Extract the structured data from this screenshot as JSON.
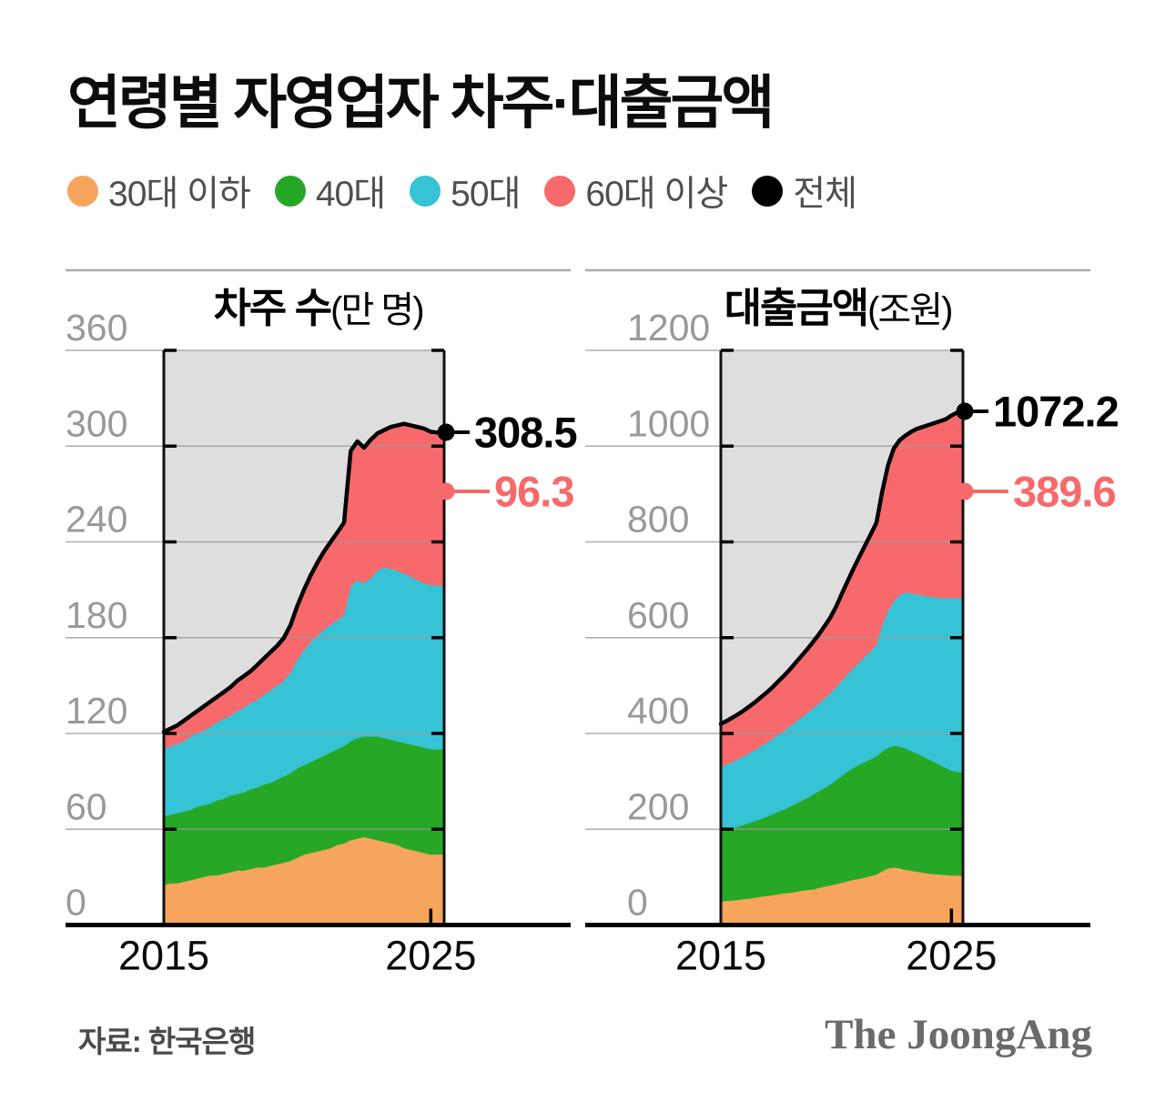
{
  "title": "연령별 자영업자 차주·대출금액",
  "source": "자료: 한국은행",
  "brand": "The JoongAng",
  "colors": {
    "under30": "#F7A55C",
    "age40": "#26A826",
    "age50": "#35C3D5",
    "age60plus": "#F8696B",
    "total": "#000000",
    "plot_bg": "#DEDEDE",
    "grid": "#9A9A9A",
    "axis_label": "#999999",
    "x_label": "#0a0a0a"
  },
  "legend": {
    "items": [
      {
        "label": "30대 이하",
        "color_key": "under30"
      },
      {
        "label": "40대",
        "color_key": "age40"
      },
      {
        "label": "50대",
        "color_key": "age50"
      },
      {
        "label": "60대 이상",
        "color_key": "age60plus"
      },
      {
        "label": "전체",
        "color_key": "total"
      }
    ]
  },
  "chart_data": [
    {
      "type": "area",
      "title": "차주 수",
      "unit": "(만 명)",
      "ylim": [
        0,
        360
      ],
      "yticks": [
        0,
        60,
        120,
        180,
        240,
        300,
        360
      ],
      "xlim": [
        2015,
        2025.5
      ],
      "xticks": [
        2015,
        2025
      ],
      "grid": true,
      "legend_position": "top",
      "x": [
        2015,
        2015.25,
        2015.5,
        2015.75,
        2016,
        2016.25,
        2016.5,
        2016.75,
        2017,
        2017.25,
        2017.5,
        2017.75,
        2018,
        2018.25,
        2018.5,
        2018.75,
        2019,
        2019.25,
        2019.5,
        2019.75,
        2020,
        2020.25,
        2020.5,
        2020.75,
        2021,
        2021.25,
        2021.5,
        2021.75,
        2022,
        2022.25,
        2022.5,
        2022.75,
        2023,
        2023.25,
        2023.5,
        2023.75,
        2024,
        2024.25,
        2024.5,
        2024.75,
        2025,
        2025.25,
        2025.5
      ],
      "series": [
        {
          "key": "under30",
          "name": "30대 이하",
          "values": [
            25,
            26,
            26,
            27,
            28,
            29,
            30,
            31,
            31,
            32,
            33,
            34,
            34,
            35,
            36,
            36,
            37,
            38,
            39,
            40,
            42,
            44,
            45,
            46,
            47,
            48,
            50,
            51,
            53,
            54,
            55,
            54,
            53,
            52,
            51,
            50,
            48,
            47,
            46,
            45,
            44,
            44,
            44
          ]
        },
        {
          "key": "age40",
          "name": "40대",
          "values": [
            43,
            43,
            44,
            44,
            44,
            45,
            45,
            45,
            47,
            47,
            48,
            48,
            49,
            50,
            50,
            52,
            52,
            53,
            54,
            55,
            56,
            56,
            57,
            58,
            59,
            60,
            60,
            61,
            62,
            63,
            63,
            64,
            65,
            65,
            65,
            65,
            66,
            66,
            66,
            66,
            66,
            66,
            66
          ]
        },
        {
          "key": "age50",
          "name": "50대",
          "values": [
            42,
            43,
            43,
            44,
            46,
            46,
            47,
            48,
            49,
            50,
            50,
            52,
            53,
            54,
            55,
            56,
            58,
            59,
            60,
            63,
            68,
            72,
            75,
            77,
            79,
            80,
            81,
            82,
            97,
            99,
            96,
            99,
            104,
            107,
            107,
            107,
            106,
            105,
            104,
            103,
            103,
            102.5,
            102.2
          ]
        },
        {
          "key": "age60plus",
          "name": "60대 이상",
          "values": [
            11,
            11,
            12,
            13,
            13,
            14,
            15,
            16,
            16,
            17,
            18,
            19,
            20,
            20,
            22,
            23,
            24,
            25,
            27,
            30,
            34,
            38,
            42,
            46,
            49,
            52,
            55,
            58,
            85,
            87,
            85,
            87,
            86,
            86,
            89,
            91,
            94,
            95,
            96,
            97,
            96,
            96,
            96.3
          ]
        }
      ],
      "total_series_name": "전체",
      "callouts": [
        {
          "label": "308.5",
          "color_key": "total",
          "y": 185
        },
        {
          "label": "96.3",
          "color_key": "age60plus",
          "y": 250
        }
      ]
    },
    {
      "type": "area",
      "title": "대출금액",
      "unit": "(조원)",
      "ylim": [
        0,
        1200
      ],
      "yticks": [
        0,
        200,
        400,
        600,
        800,
        1000,
        1200
      ],
      "xlim": [
        2015,
        2025.5
      ],
      "xticks": [
        2015,
        2025
      ],
      "grid": true,
      "legend_position": "top",
      "x": [
        2015,
        2015.25,
        2015.5,
        2015.75,
        2016,
        2016.25,
        2016.5,
        2016.75,
        2017,
        2017.25,
        2017.5,
        2017.75,
        2018,
        2018.25,
        2018.5,
        2018.75,
        2019,
        2019.25,
        2019.5,
        2019.75,
        2020,
        2020.25,
        2020.5,
        2020.75,
        2021,
        2021.25,
        2021.5,
        2021.75,
        2022,
        2022.25,
        2022.5,
        2022.75,
        2023,
        2023.25,
        2023.5,
        2023.75,
        2024,
        2024.25,
        2024.5,
        2024.75,
        2025,
        2025.25,
        2025.5
      ],
      "series": [
        {
          "key": "under30",
          "name": "30대 이하",
          "values": [
            49,
            50,
            51,
            52,
            54,
            55,
            57,
            59,
            60,
            62,
            64,
            66,
            67,
            69,
            71,
            73,
            74,
            77,
            80,
            82,
            85,
            88,
            91,
            94,
            96,
            99,
            102,
            105,
            112,
            118,
            120,
            118,
            115,
            113,
            111,
            109,
            107,
            106,
            105,
            104,
            103,
            103,
            103
          ]
        },
        {
          "key": "age40",
          "name": "40대",
          "values": [
            147,
            149,
            151,
            153,
            155,
            158,
            160,
            162,
            166,
            169,
            172,
            175,
            180,
            184,
            188,
            192,
            198,
            202,
            206,
            211,
            217,
            223,
            229,
            234,
            238,
            241,
            244,
            247,
            250,
            252,
            254,
            254,
            253,
            250,
            247,
            243,
            239,
            234,
            229,
            224,
            219,
            216,
            215
          ]
        },
        {
          "key": "age50",
          "name": "50대",
          "values": [
            134,
            136,
            138,
            141,
            143,
            146,
            149,
            152,
            155,
            158,
            161,
            165,
            168,
            171,
            174,
            177,
            180,
            183,
            186,
            190,
            194,
            199,
            203,
            208,
            214,
            220,
            226,
            232,
            263,
            285,
            301,
            316,
            326,
            329,
            332,
            336,
            340,
            344,
            349,
            354,
            360,
            363.6,
            364.6
          ]
        },
        {
          "key": "age60plus",
          "name": "60대 이상",
          "values": [
            90,
            91,
            93,
            94,
            96,
            98,
            100,
            103,
            105,
            108,
            112,
            115,
            119,
            124,
            129,
            134,
            139,
            145,
            152,
            159,
            169,
            182,
            195,
            208,
            220,
            232,
            244,
            256,
            280,
            305,
            320,
            324,
            328,
            338,
            346,
            352,
            358,
            364,
            369,
            374,
            382,
            387.4,
            389.6
          ]
        }
      ],
      "total_series_name": "전체",
      "callouts": [
        {
          "label": "1072.2",
          "color_key": "total",
          "y": 162
        },
        {
          "label": "389.6",
          "color_key": "age60plus",
          "y": 250
        }
      ]
    }
  ]
}
